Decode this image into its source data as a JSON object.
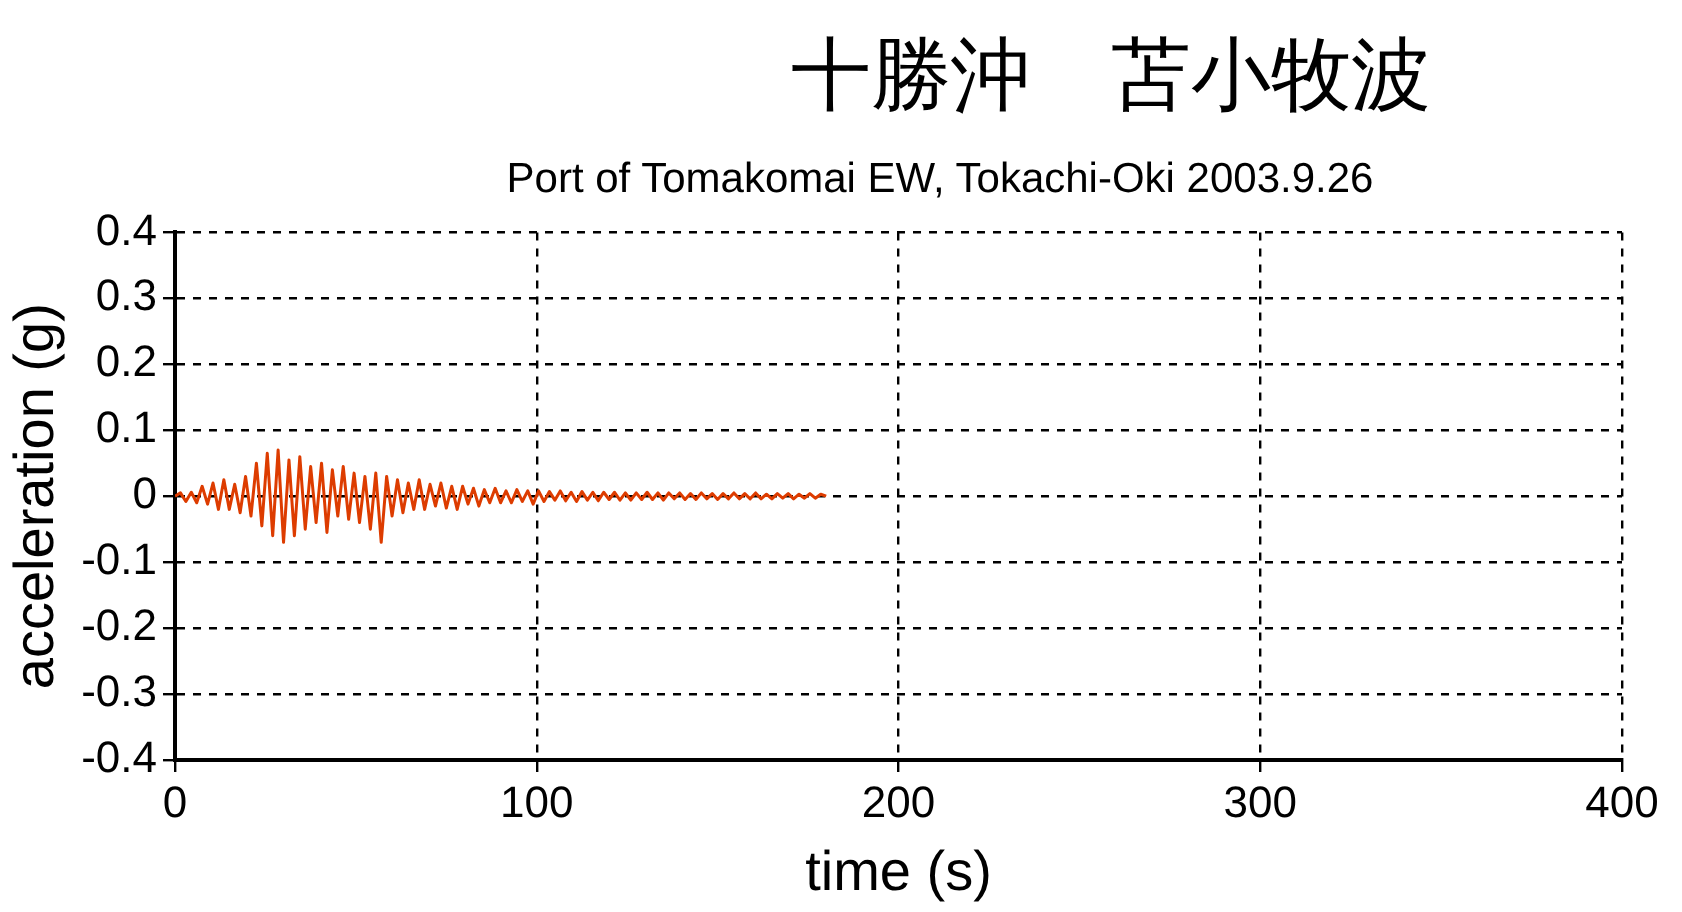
{
  "chart_data": {
    "type": "line",
    "title": "十勝沖　苫小牧波",
    "subtitle": "Port of Tomakomai EW, Tokachi-Oki 2003.9.26",
    "xlabel": "time (s)",
    "ylabel": "acceleration (g)",
    "xlim": [
      0,
      400
    ],
    "xticks": [
      0,
      100,
      200,
      300,
      400
    ],
    "ylim": [
      -0.4,
      0.4
    ],
    "yticks": [
      -0.4,
      -0.3,
      -0.2,
      -0.1,
      0,
      0.1,
      0.2,
      0.3,
      0.4
    ],
    "grid": true,
    "legend": false,
    "marker": "none",
    "line_style": "solid",
    "series": [
      {
        "color": "#dd3c00",
        "x": [
          0,
          1.5,
          3,
          4.5,
          6,
          7.5,
          9,
          10.5,
          12,
          13.5,
          15,
          16.5,
          18,
          19.5,
          21,
          22.5,
          24,
          25.5,
          27,
          28.5,
          30,
          31.5,
          33,
          34.5,
          36,
          37.5,
          39,
          40.5,
          42,
          43.5,
          45,
          46.5,
          48,
          49.5,
          51,
          52.5,
          54,
          55.5,
          57,
          58.5,
          60,
          61.5,
          63,
          64.5,
          66,
          67.5,
          69,
          70.5,
          72,
          73.5,
          75,
          76.5,
          78,
          79.5,
          81,
          82.5,
          84,
          85.5,
          87,
          88.5,
          90,
          91.5,
          93,
          94.5,
          96,
          97.5,
          99,
          100.5,
          102,
          103.5,
          105,
          106.5,
          108,
          109.5,
          111,
          112.5,
          114,
          115.5,
          117,
          118.5,
          120,
          121.5,
          123,
          124.5,
          126,
          127.5,
          129,
          130.5,
          132,
          133.5,
          135,
          136.5,
          138,
          139.5,
          141,
          142.5,
          144,
          145.5,
          147,
          148.5,
          150,
          151.5,
          153,
          154.5,
          156,
          157.5,
          159,
          160.5,
          162,
          163.5,
          165,
          166.5,
          168,
          169.5,
          171,
          172.5,
          174,
          175.5,
          177,
          178.5,
          180
        ],
        "values": [
          0,
          0.005,
          -0.008,
          0.006,
          -0.01,
          0.015,
          -0.012,
          0.02,
          -0.02,
          0.025,
          -0.02,
          0.018,
          -0.025,
          0.03,
          -0.03,
          0.05,
          -0.045,
          0.065,
          -0.06,
          0.07,
          -0.07,
          0.055,
          -0.06,
          0.06,
          -0.05,
          0.045,
          -0.04,
          0.05,
          -0.055,
          0.04,
          -0.03,
          0.045,
          -0.035,
          0.035,
          -0.04,
          0.03,
          -0.05,
          0.035,
          -0.07,
          0.03,
          -0.03,
          0.025,
          -0.025,
          0.02,
          -0.02,
          0.025,
          -0.02,
          0.018,
          -0.015,
          0.02,
          -0.018,
          0.015,
          -0.02,
          0.015,
          -0.012,
          0.012,
          -0.015,
          0.01,
          -0.01,
          0.012,
          -0.01,
          0.008,
          -0.01,
          0.01,
          -0.008,
          0.008,
          -0.012,
          0.008,
          -0.008,
          0.007,
          -0.006,
          0.008,
          -0.007,
          0.006,
          -0.008,
          0.007,
          -0.006,
          0.006,
          -0.007,
          0.006,
          -0.005,
          0.006,
          -0.006,
          0.005,
          -0.006,
          0.005,
          -0.005,
          0.006,
          -0.005,
          0.005,
          -0.006,
          0.005,
          -0.004,
          0.005,
          -0.005,
          0.004,
          -0.005,
          0.005,
          -0.004,
          0.004,
          -0.005,
          0.004,
          -0.004,
          0.005,
          -0.004,
          0.004,
          -0.004,
          0.005,
          -0.004,
          0.003,
          -0.004,
          0.004,
          -0.003,
          0.004,
          -0.004,
          0.003,
          -0.003,
          0.004,
          -0.003,
          0.003,
          0
        ]
      }
    ]
  }
}
